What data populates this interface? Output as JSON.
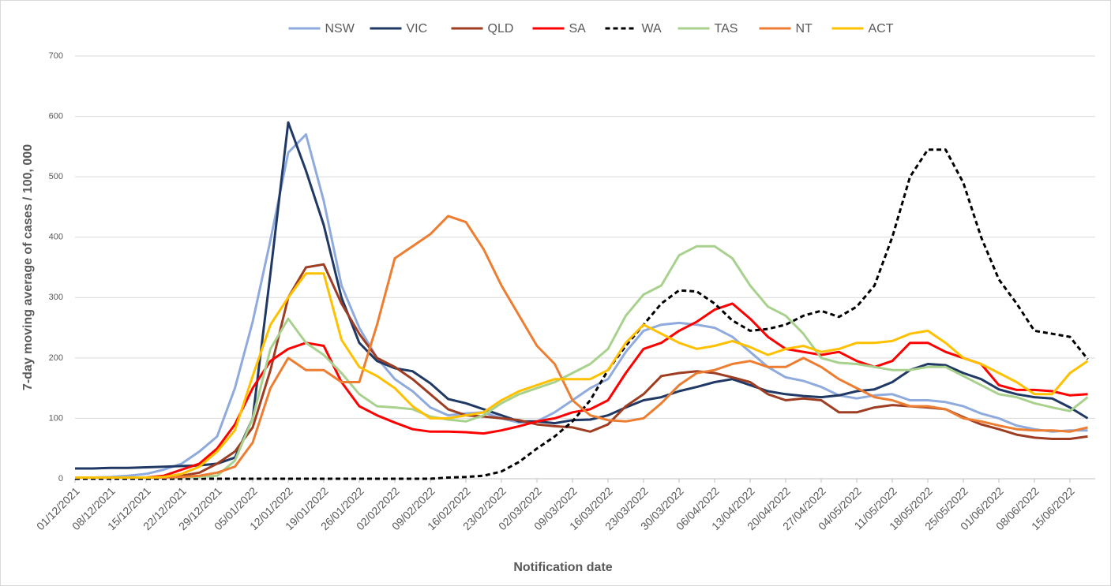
{
  "chart_data": {
    "type": "line",
    "x_label": "Notification date",
    "y_label": "7-day moving average of cases / 100, 000",
    "categories": [
      "01/12/2021",
      null,
      "08/12/2021",
      null,
      "15/12/2021",
      null,
      "22/12/2021",
      null,
      "29/12/2021",
      null,
      "05/01/2022",
      null,
      "12/01/2022",
      null,
      "19/01/2022",
      null,
      "26/01/2022",
      null,
      "02/02/2022",
      null,
      "09/02/2022",
      null,
      "16/02/2022",
      null,
      "23/02/2022",
      null,
      "02/03/2022",
      null,
      "09/03/2022",
      null,
      "16/03/2022",
      null,
      "23/03/2022",
      null,
      "30/03/2022",
      null,
      "06/04/2022",
      null,
      "13/04/2022",
      null,
      "20/04/2022",
      null,
      "27/04/2022",
      null,
      "04/05/2022",
      null,
      "11/05/2022",
      null,
      "18/05/2022",
      null,
      "25/05/2022",
      null,
      "01/06/2022",
      null,
      "08/06/2022",
      null,
      "15/06/2022",
      null
    ],
    "ylim": [
      0,
      700
    ],
    "yticks": [
      0,
      100,
      200,
      300,
      400,
      500,
      600,
      700
    ],
    "grid": true,
    "legend": "top",
    "series": [
      {
        "name": "NSW",
        "color": "#8faadc",
        "values": [
          2,
          2,
          3,
          5,
          8,
          15,
          25,
          45,
          70,
          150,
          260,
          395,
          540,
          570,
          460,
          320,
          250,
          200,
          165,
          145,
          118,
          105,
          108,
          110,
          100,
          93,
          95,
          110,
          130,
          150,
          165,
          210,
          245,
          255,
          258,
          255,
          250,
          235,
          210,
          185,
          168,
          162,
          152,
          138,
          133,
          138,
          140,
          130,
          130,
          127,
          120,
          108,
          100,
          88,
          82,
          78,
          80,
          80
        ]
      },
      {
        "name": "VIC",
        "color": "#203864",
        "values": [
          17,
          17,
          18,
          18,
          19,
          20,
          21,
          22,
          25,
          35,
          100,
          340,
          590,
          510,
          420,
          300,
          225,
          195,
          183,
          178,
          158,
          132,
          125,
          115,
          105,
          95,
          95,
          92,
          97,
          98,
          105,
          118,
          130,
          135,
          145,
          152,
          160,
          165,
          155,
          145,
          140,
          137,
          135,
          138,
          145,
          148,
          160,
          180,
          190,
          188,
          175,
          165,
          148,
          140,
          135,
          133,
          118,
          100
        ]
      },
      {
        "name": "QLD",
        "color": "#9e3d22",
        "values": [
          2,
          2,
          2,
          2,
          2,
          3,
          5,
          10,
          25,
          45,
          85,
          180,
          300,
          350,
          355,
          290,
          240,
          200,
          185,
          165,
          140,
          115,
          105,
          103,
          100,
          97,
          90,
          87,
          85,
          78,
          90,
          120,
          140,
          170,
          175,
          178,
          175,
          168,
          160,
          140,
          130,
          133,
          130,
          110,
          110,
          118,
          122,
          120,
          118,
          115,
          102,
          90,
          82,
          73,
          68,
          66,
          66,
          70
        ]
      },
      {
        "name": "SA",
        "color": "#ff0000",
        "values": [
          2,
          2,
          2,
          2,
          2,
          5,
          15,
          25,
          50,
          90,
          150,
          195,
          215,
          225,
          220,
          160,
          120,
          105,
          93,
          82,
          78,
          78,
          77,
          75,
          80,
          87,
          95,
          100,
          110,
          115,
          130,
          175,
          215,
          225,
          245,
          260,
          280,
          290,
          265,
          235,
          215,
          210,
          205,
          210,
          195,
          185,
          195,
          225,
          225,
          210,
          200,
          190,
          155,
          147,
          147,
          145,
          138,
          140
        ]
      },
      {
        "name": "WA",
        "color": "#000000",
        "dashed": true,
        "values": [
          0,
          0,
          0,
          0,
          0,
          0,
          0,
          0,
          0,
          0,
          0,
          0,
          0,
          0,
          0,
          0,
          0,
          0,
          0,
          0,
          0,
          2,
          3,
          5,
          12,
          28,
          50,
          70,
          95,
          130,
          180,
          220,
          255,
          290,
          312,
          310,
          290,
          262,
          245,
          248,
          255,
          270,
          278,
          268,
          285,
          320,
          400,
          500,
          545,
          545,
          490,
          400,
          330,
          290,
          245,
          240,
          235,
          198
        ]
      },
      {
        "name": "TAS",
        "color": "#a9d18e",
        "values": [
          2,
          2,
          2,
          2,
          2,
          2,
          3,
          3,
          5,
          30,
          100,
          215,
          265,
          225,
          205,
          175,
          140,
          120,
          118,
          115,
          103,
          98,
          95,
          105,
          125,
          140,
          150,
          160,
          175,
          190,
          215,
          270,
          305,
          320,
          370,
          385,
          385,
          365,
          320,
          285,
          270,
          240,
          200,
          192,
          190,
          185,
          180,
          180,
          185,
          185,
          170,
          155,
          140,
          135,
          125,
          118,
          112,
          135
        ]
      },
      {
        "name": "NT",
        "color": "#ed7d31",
        "values": [
          2,
          2,
          2,
          2,
          2,
          2,
          3,
          5,
          10,
          20,
          60,
          150,
          200,
          180,
          180,
          160,
          160,
          255,
          365,
          385,
          405,
          435,
          425,
          380,
          320,
          270,
          220,
          190,
          130,
          105,
          97,
          95,
          100,
          125,
          155,
          175,
          180,
          190,
          195,
          185,
          185,
          200,
          185,
          165,
          150,
          135,
          130,
          120,
          120,
          115,
          100,
          95,
          88,
          82,
          80,
          80,
          78,
          85
        ]
      },
      {
        "name": "ACT",
        "color": "#ffc000",
        "values": [
          2,
          2,
          2,
          2,
          2,
          3,
          8,
          20,
          45,
          80,
          170,
          255,
          300,
          340,
          340,
          230,
          185,
          170,
          150,
          120,
          100,
          100,
          105,
          110,
          130,
          145,
          155,
          165,
          165,
          165,
          180,
          225,
          255,
          240,
          225,
          215,
          220,
          228,
          218,
          205,
          215,
          220,
          210,
          215,
          225,
          225,
          228,
          240,
          245,
          225,
          200,
          190,
          175,
          160,
          140,
          140,
          175,
          195
        ]
      }
    ]
  }
}
